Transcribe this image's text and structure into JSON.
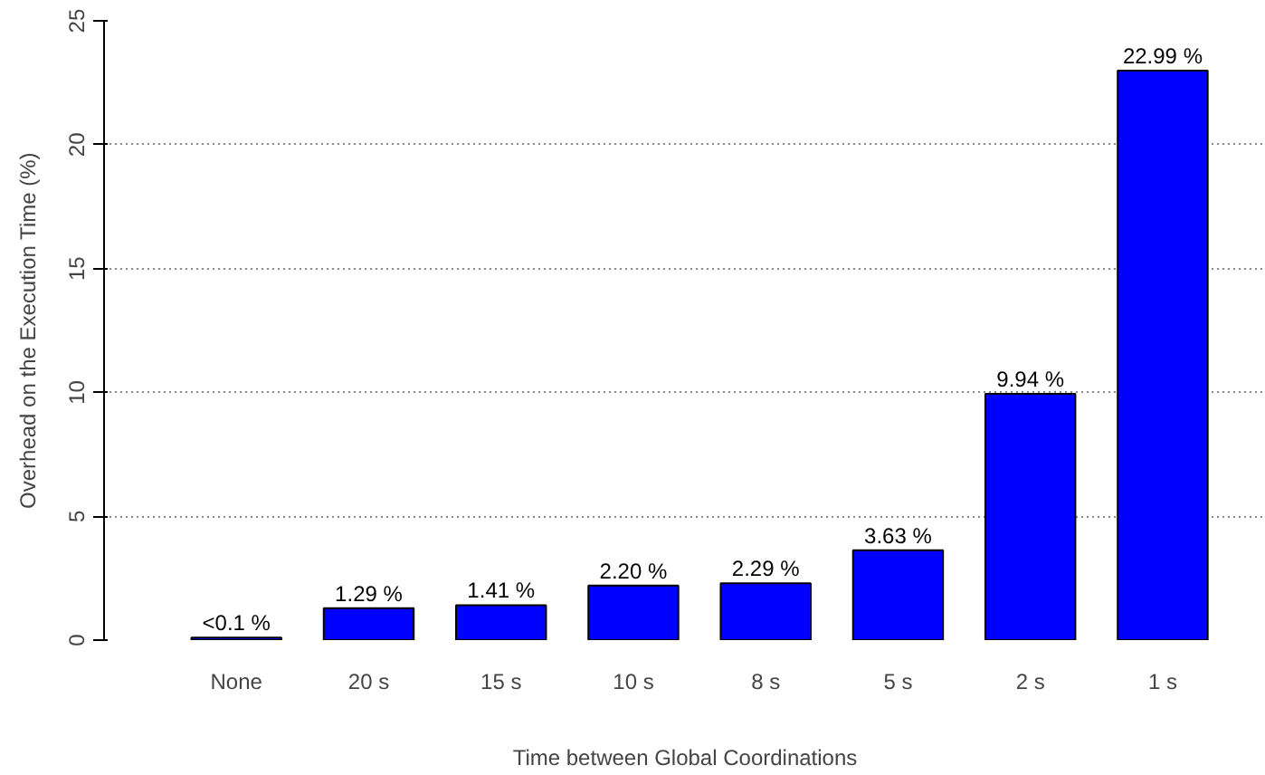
{
  "chart_data": {
    "type": "bar",
    "xlabel": "Time between Global Coordinations",
    "ylabel": "Overhead on the Execution Time (%)",
    "categories": [
      "None",
      "20 s",
      "15 s",
      "10 s",
      "8 s",
      "5 s",
      "2 s",
      "1 s"
    ],
    "values": [
      0.1,
      1.29,
      1.41,
      2.2,
      2.29,
      3.63,
      9.94,
      22.99
    ],
    "value_labels": [
      "<0.1 %",
      "1.29 %",
      "1.41 %",
      "2.20 %",
      "2.29 %",
      "3.63 %",
      "9.94 %",
      "22.99 %"
    ],
    "color": "#0000ff",
    "ylim": [
      0,
      25
    ],
    "yticks": [
      0,
      5,
      10,
      15,
      20,
      25
    ],
    "grid": "y"
  }
}
